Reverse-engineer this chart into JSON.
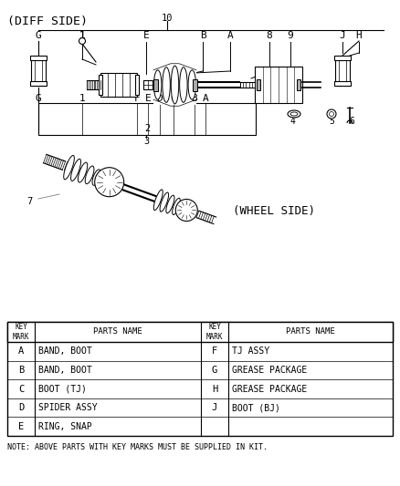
{
  "bg_color": "#ffffff",
  "diff_side_label": "(DIFF SIDE)",
  "wheel_side_label": "(WHEEL SIDE)",
  "note_text": "NOTE: ABOVE PARTS WITH KEY MARKS MUST BE SUPPLIED IN KIT.",
  "table_data": [
    [
      "A",
      "BAND, BOOT",
      "F",
      "TJ ASSY"
    ],
    [
      "B",
      "BAND, BOOT",
      "G",
      "GREASE PACKAGE"
    ],
    [
      "C",
      "BOOT (TJ)",
      "H",
      "GREASE PACKAGE"
    ],
    [
      "D",
      "SPIDER ASSY",
      "J",
      "BOOT (BJ)"
    ],
    [
      "E",
      "RING, SNAP",
      "",
      ""
    ]
  ],
  "font_family": "monospace",
  "fig_w": 4.38,
  "fig_h": 5.33,
  "dpi": 100
}
